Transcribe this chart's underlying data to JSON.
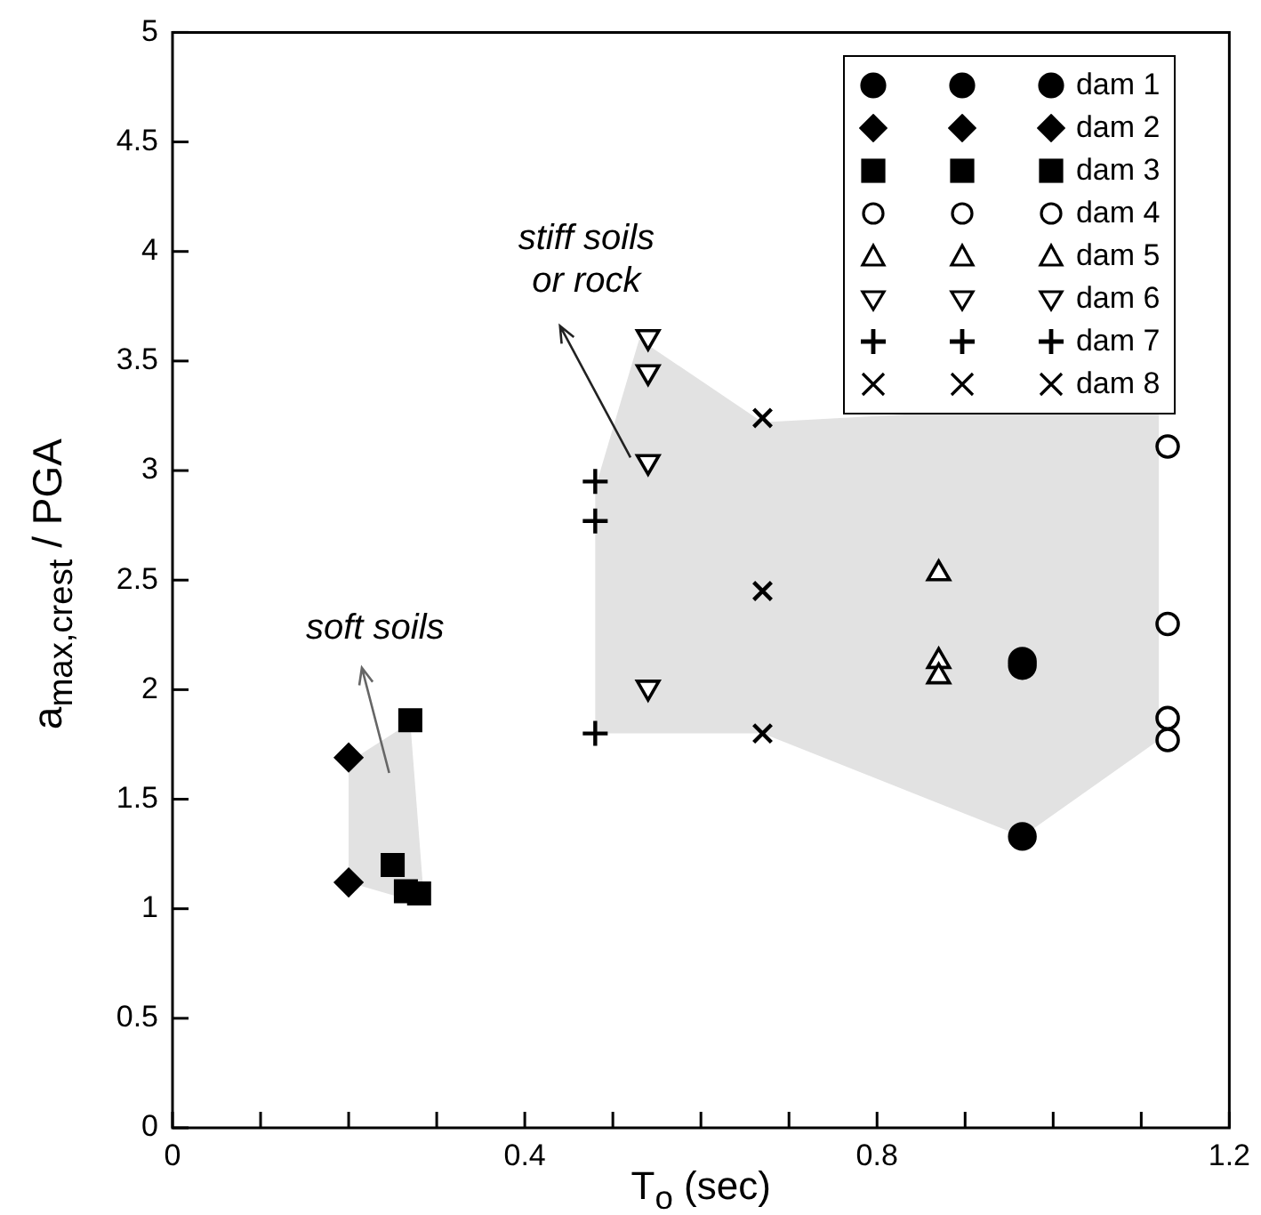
{
  "chart_data": {
    "type": "scatter",
    "xlabel": "T$_{o}$ (sec)",
    "ylabel": "a$_{max,crest}$ / PGA",
    "xlim": [
      0,
      1.2
    ],
    "xticks": [
      0,
      {
        "value": 0.1,
        "label": null
      },
      {
        "value": 0.2,
        "label": null
      },
      {
        "value": 0.3,
        "label": null
      },
      0.4,
      {
        "value": 0.5,
        "label": null
      },
      {
        "value": 0.6,
        "label": null
      },
      {
        "value": 0.7,
        "label": null
      },
      0.8,
      {
        "value": 0.9,
        "label": null
      },
      {
        "value": 1.0,
        "label": null
      },
      {
        "value": 1.1,
        "label": null
      },
      1.2
    ],
    "ylim": [
      0,
      5
    ],
    "yticks": [
      0,
      0.5,
      1,
      1.5,
      2,
      2.5,
      3,
      3.5,
      4,
      4.5,
      5
    ],
    "legend": "top right",
    "annotations": [
      "soft soils",
      {
        "text": "stiff soils or rock",
        "x": 0.52,
        "y": 3.06
      }
    ],
    "series": [
      {
        "name": "dam 1",
        "color": "#000000",
        "marker": "circle",
        "x": [
          0.965,
          0.965,
          0.965
        ],
        "values": [
          2.13,
          2.11,
          1.33
        ]
      },
      {
        "name": "dam 2",
        "color": "#000000",
        "marker": "diamond",
        "x": [
          0.2,
          0.2
        ],
        "values": [
          1.69,
          1.12
        ]
      },
      {
        "name": "dam 3",
        "color": "#000000",
        "marker": "square",
        "x": [
          0.27,
          0.25,
          0.265,
          0.28
        ],
        "values": [
          1.86,
          1.2,
          1.08,
          1.07
        ]
      },
      {
        "name": "dam 4",
        "color": "#000000",
        "marker": "circle-open",
        "x": [
          1.13,
          1.13,
          1.13,
          1.13
        ],
        "values": [
          3.11,
          2.3,
          1.87,
          1.77
        ]
      },
      {
        "name": "dam 5",
        "color": "#000000",
        "marker": "triangle-open",
        "x": [
          0.87,
          0.87,
          0.87
        ],
        "values": [
          2.53,
          2.13,
          2.06
        ]
      },
      {
        "name": "dam 6",
        "color": "#000000",
        "marker": "triangle-down-open",
        "x": [
          0.54,
          0.54,
          0.54,
          0.54
        ],
        "values": [
          3.61,
          3.45,
          3.04,
          2.01
        ]
      },
      {
        "name": "dam 7",
        "color": "#000000",
        "marker": "plus",
        "x": [
          0.48,
          0.48,
          0.48
        ],
        "values": [
          2.95,
          2.77,
          1.8
        ]
      },
      {
        "name": "dam 8",
        "color": "#000000",
        "marker": "cross",
        "x": [
          0.67,
          0.67,
          0.67
        ],
        "values": [
          3.24,
          2.45,
          1.8
        ]
      }
    ]
  }
}
